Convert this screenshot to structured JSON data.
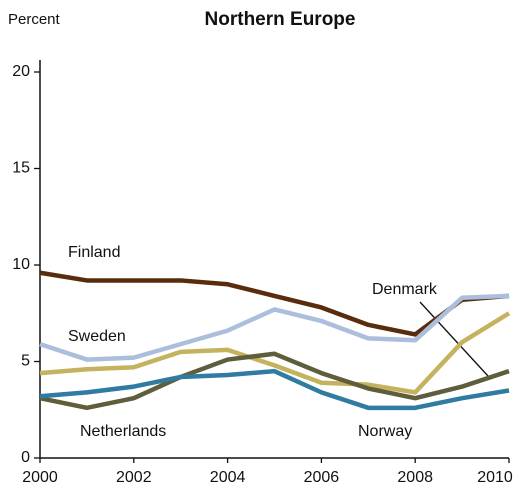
{
  "chart_data": {
    "type": "line",
    "title": "Northern Europe",
    "y_label": "Percent",
    "x": [
      2000,
      2001,
      2002,
      2003,
      2004,
      2005,
      2006,
      2007,
      2008,
      2009,
      2010
    ],
    "xlim": [
      2000,
      2010
    ],
    "xticks": [
      2000,
      2002,
      2004,
      2006,
      2008,
      2010
    ],
    "ylim": [
      0,
      20
    ],
    "yticks": [
      0,
      5,
      10,
      15,
      20
    ],
    "series": [
      {
        "name": "Finland",
        "color": "#5a2c0e",
        "values": [
          9.6,
          9.2,
          9.2,
          9.2,
          9.0,
          8.4,
          7.8,
          6.9,
          6.4,
          8.2,
          8.4
        ]
      },
      {
        "name": "Sweden",
        "color": "#abbedb",
        "values": [
          5.9,
          5.1,
          5.2,
          5.9,
          6.6,
          7.7,
          7.1,
          6.2,
          6.1,
          8.3,
          8.4
        ]
      },
      {
        "name": "Denmark",
        "color": "#c4b25e",
        "values": [
          4.4,
          4.6,
          4.7,
          5.5,
          5.6,
          4.8,
          3.9,
          3.8,
          3.4,
          6.0,
          7.5
        ]
      },
      {
        "name": "Netherlands",
        "color": "#5e5d3c",
        "values": [
          3.1,
          2.6,
          3.1,
          4.2,
          5.1,
          5.4,
          4.4,
          3.6,
          3.1,
          3.7,
          4.5
        ]
      },
      {
        "name": "Norway",
        "color": "#2f7ba2",
        "values": [
          3.2,
          3.4,
          3.7,
          4.2,
          4.3,
          4.5,
          3.4,
          2.6,
          2.6,
          3.1,
          3.5
        ]
      }
    ]
  }
}
